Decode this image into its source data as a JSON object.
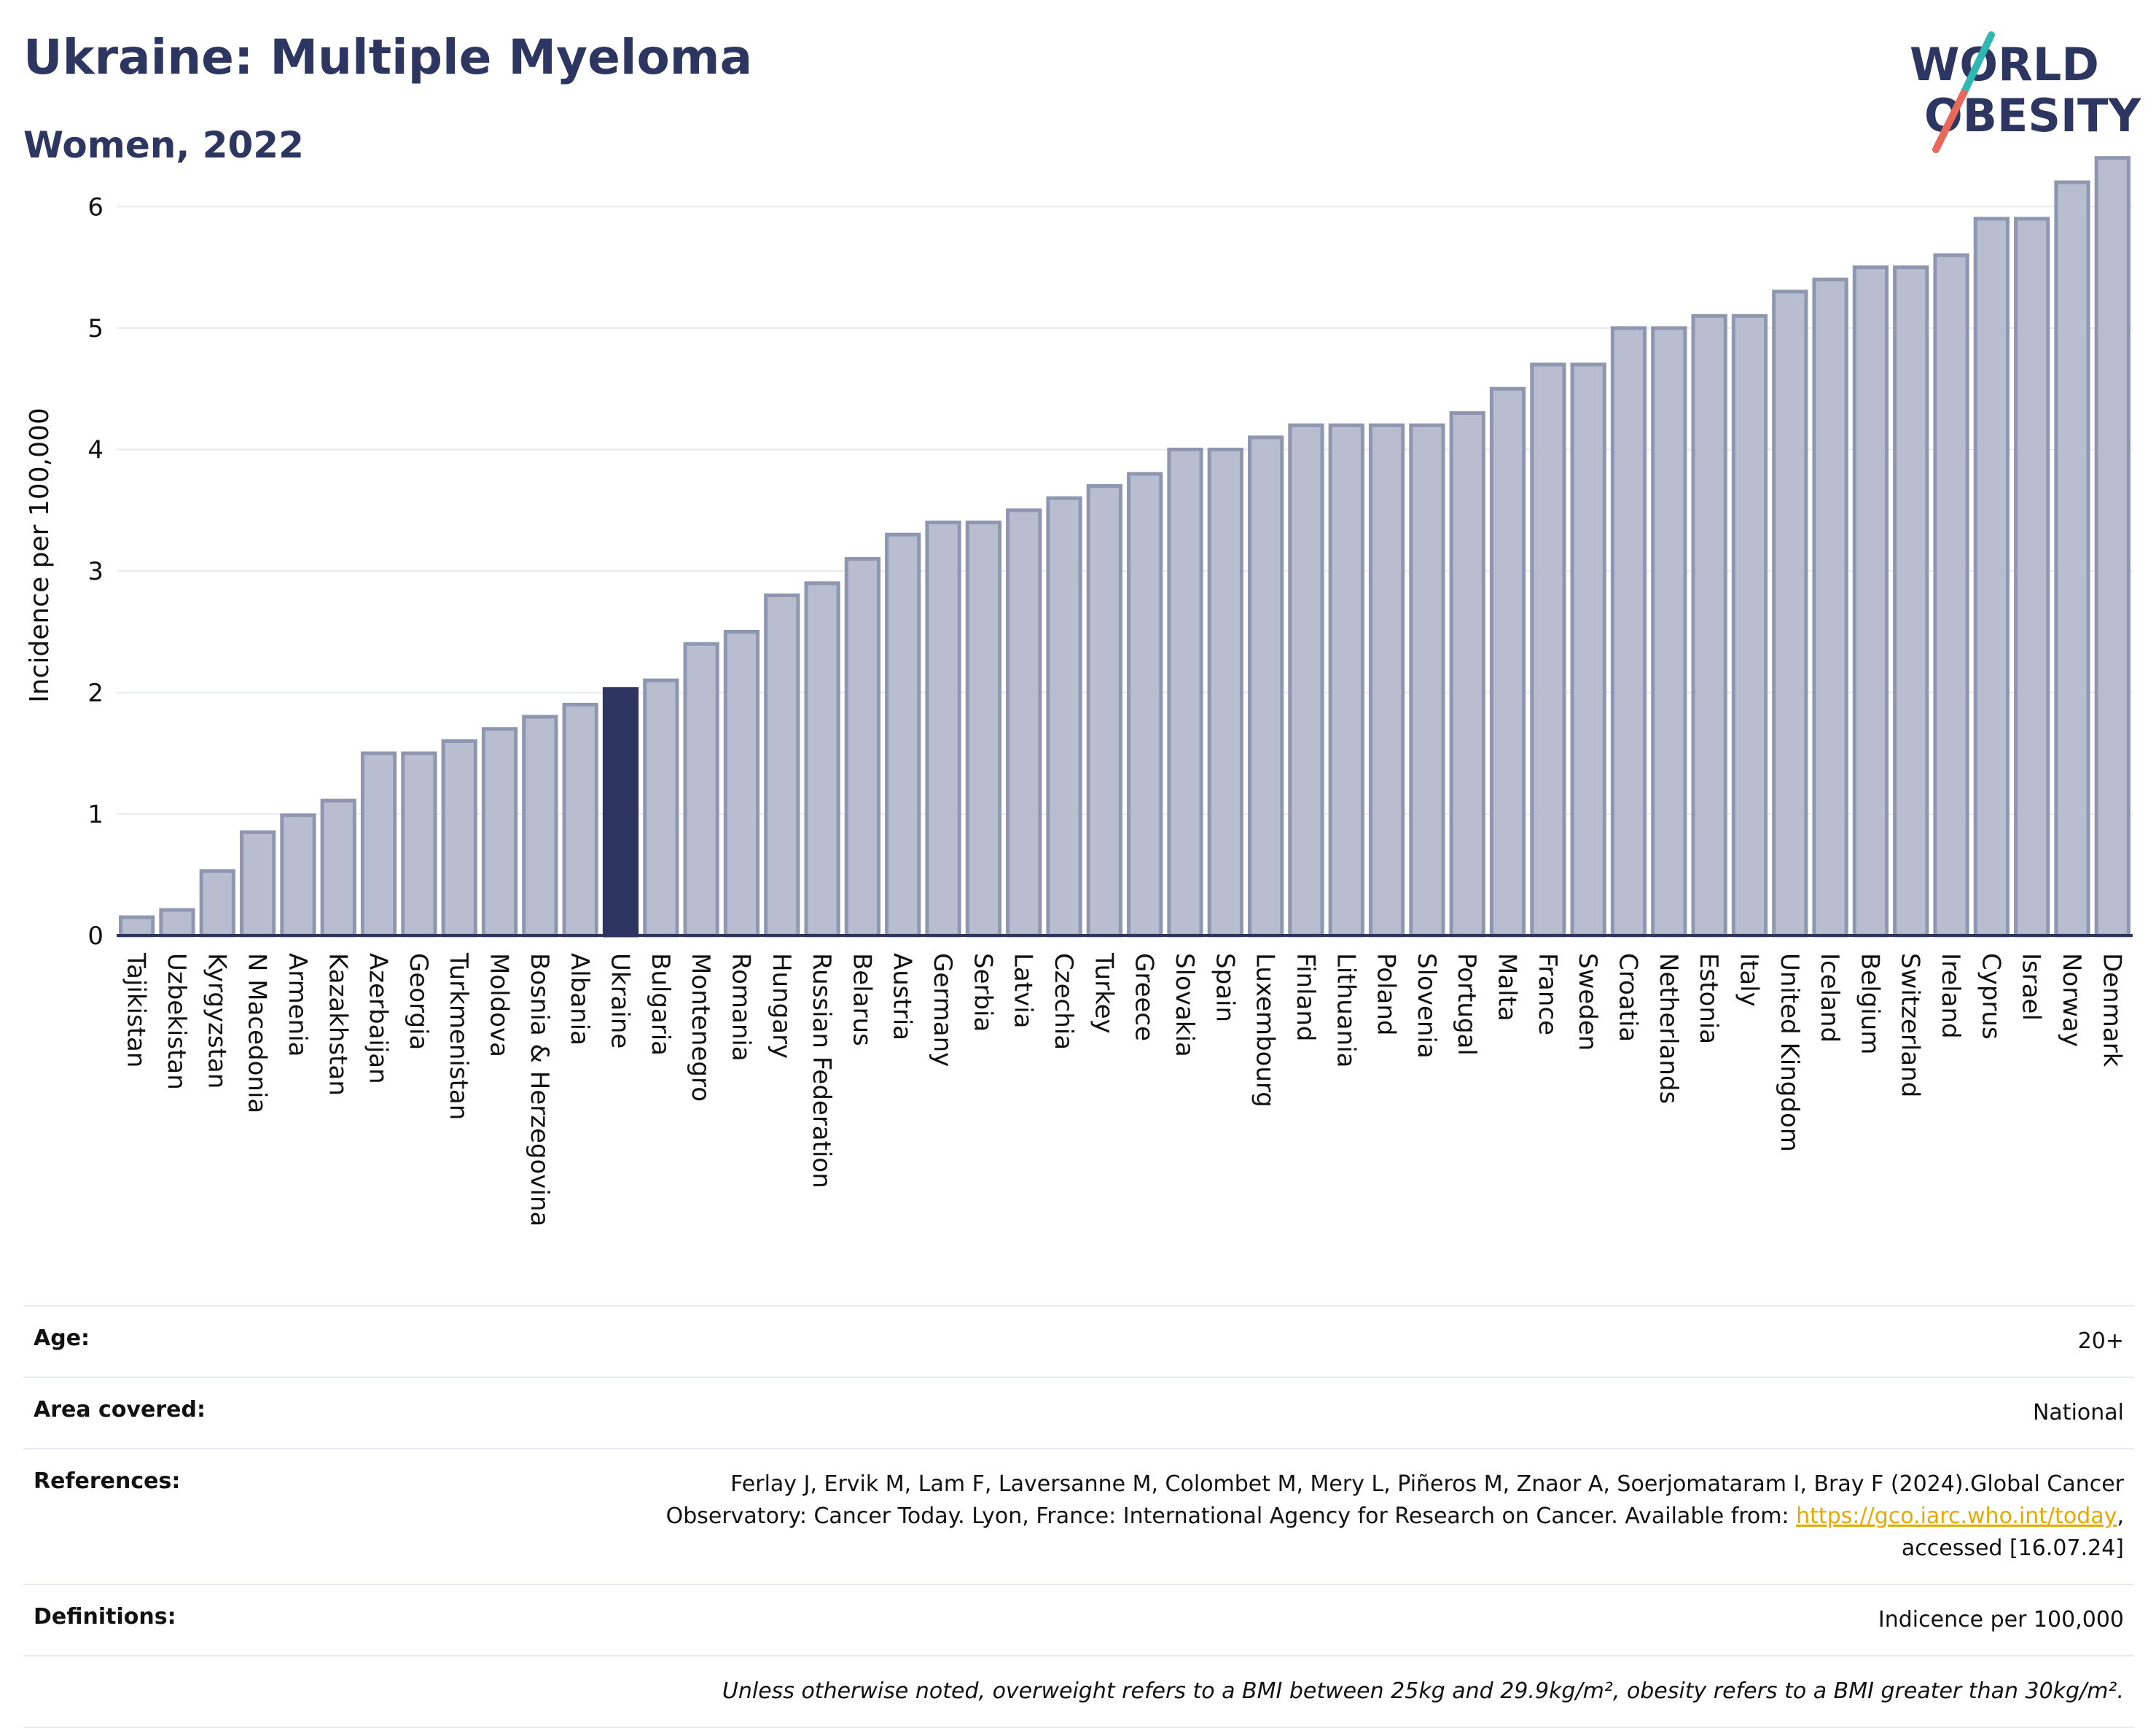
{
  "title": "Ukraine: Multiple Myeloma",
  "subtitle": "Women, 2022",
  "logo": {
    "line1": "WORLD",
    "line2": "OBESITY",
    "colors": {
      "text": "#2c3660",
      "slash_top": "#2fb7b2",
      "slash_bottom": "#e8685a"
    }
  },
  "colors": {
    "bar": "#b8bdcf",
    "bar_stroke": "#8f96b0",
    "highlight": "#2c3660",
    "grid": "#e6e8ef",
    "axis": "#2c3660"
  },
  "chart_data": {
    "type": "bar",
    "ylabel": "Incidence per 100,000",
    "ylim": [
      0,
      6.5
    ],
    "yticks": [
      0,
      1,
      2,
      3,
      4,
      5,
      6
    ],
    "grid": true,
    "highlight": "Ukraine",
    "categories": [
      "Tajikistan",
      "Uzbekistan",
      "Kyrgyzstan",
      "N Macedonia",
      "Armenia",
      "Kazakhstan",
      "Azerbaijan",
      "Georgia",
      "Turkmenistan",
      "Moldova",
      "Bosnia & Herzegovina",
      "Albania",
      "Ukraine",
      "Bulgaria",
      "Montenegro",
      "Romania",
      "Hungary",
      "Russian Federation",
      "Belarus",
      "Austria",
      "Germany",
      "Serbia",
      "Latvia",
      "Czechia",
      "Turkey",
      "Greece",
      "Slovakia",
      "Spain",
      "Luxembourg",
      "Finland",
      "Lithuania",
      "Poland",
      "Slovenia",
      "Portugal",
      "Malta",
      "France",
      "Sweden",
      "Croatia",
      "Netherlands",
      "Estonia",
      "Italy",
      "United Kingdom",
      "Iceland",
      "Belgium",
      "Switzerland",
      "Ireland",
      "Cyprus",
      "Israel",
      "Norway",
      "Denmark"
    ],
    "values": [
      0.15,
      0.21,
      0.53,
      0.85,
      0.99,
      1.11,
      1.5,
      1.5,
      1.6,
      1.7,
      1.8,
      1.9,
      2.03,
      2.1,
      2.4,
      2.5,
      2.8,
      2.9,
      3.1,
      3.3,
      3.4,
      3.4,
      3.5,
      3.6,
      3.7,
      3.8,
      4.0,
      4.0,
      4.1,
      4.2,
      4.2,
      4.2,
      4.2,
      4.3,
      4.5,
      4.7,
      4.7,
      5.0,
      5.0,
      5.1,
      5.1,
      5.3,
      5.4,
      5.5,
      5.5,
      5.6,
      5.9,
      5.9,
      6.2,
      6.4
    ]
  },
  "info": {
    "age": {
      "label": "Age:",
      "value": "20+"
    },
    "area": {
      "label": "Area covered:",
      "value": "National"
    },
    "references": {
      "label": "References:",
      "line1": "Ferlay J, Ervik M, Lam F, Laversanne M, Colombet M, Mery L, Piñeros M, Znaor A, Soerjomataram I, Bray F (2024).Global Cancer",
      "line2_prefix": "Observatory: Cancer Today. Lyon, France: International Agency for Research on Cancer. Available from: ",
      "link": "https://gco.iarc.who.int/today",
      "line2_suffix": ",",
      "line3": "accessed [16.07.24]"
    },
    "definitions": {
      "label": "Definitions:",
      "value": "Indicence per 100,000"
    },
    "note": "Unless otherwise noted, overweight refers to a BMI between 25kg and 29.9kg/m², obesity refers to a BMI greater than 30kg/m²."
  }
}
